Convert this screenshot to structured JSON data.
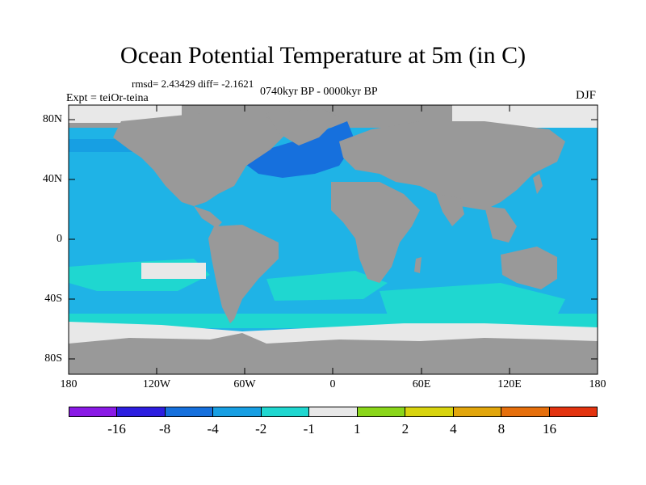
{
  "figure": {
    "title": "Ocean Potential Temperature at 5m (in C)",
    "stats": "rmsd= 2.43429 diff= -2.1621",
    "period": "0740kyr BP - 0000kyr BP",
    "experiment": "Expt = teiOr-teina",
    "season": "DJF"
  },
  "axes": {
    "lat_labels": [
      "80N",
      "40N",
      "0",
      "40S",
      "80S"
    ],
    "lon_labels": [
      "180",
      "120W",
      "60W",
      "0",
      "60E",
      "120E",
      "180"
    ]
  },
  "colorbar": {
    "colors": [
      "#8a1ae6",
      "#2d1ee0",
      "#1670dd",
      "#179fe3",
      "#1fd7d0",
      "#e8e8e8",
      "#8ad61a",
      "#d8d40e",
      "#e2a60c",
      "#e66f0c",
      "#e3330f"
    ],
    "labels": [
      "-16",
      "-8",
      "-4",
      "-2",
      "-1",
      "1",
      "2",
      "4",
      "8",
      "16"
    ]
  },
  "colors": {
    "land": "#999999",
    "ocean": "#1fb3e6",
    "ocean_light": "#1fd7d0",
    "ice": "#e8e8e8",
    "ocean_dark": "#1670dd"
  }
}
